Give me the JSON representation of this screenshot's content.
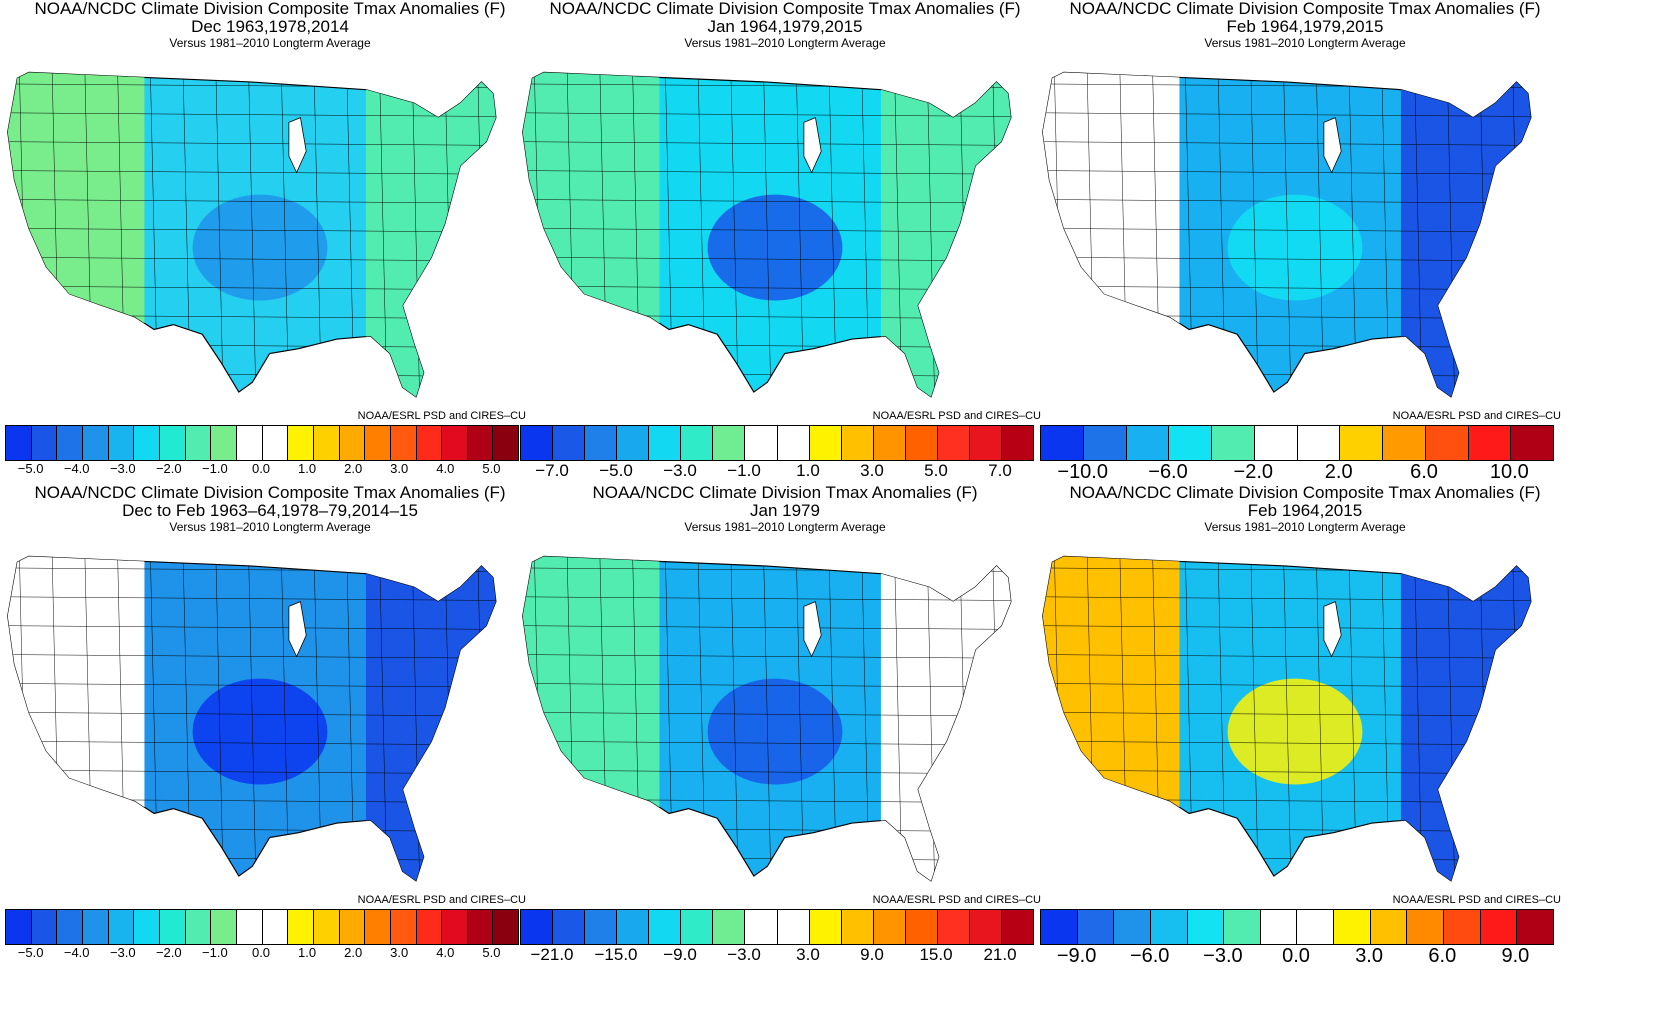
{
  "credit": "NOAA/ESRL PSD and CIRES–CU",
  "panels": [
    {
      "title1": "NOAA/NCDC Climate Division Composite Tmax Anomalies (F)",
      "title2": "Dec   1963,1978,2014",
      "title3": "Versus 1981–2010 Longterm Average",
      "colors": [
        "#0b36f0",
        "#1a55e6",
        "#1e73e8",
        "#1f93ea",
        "#17b4f0",
        "#12d8f2",
        "#22ead2",
        "#52ecb0",
        "#79ed8c",
        "#ffffff",
        "#ffffff",
        "#fff200",
        "#ffd000",
        "#ffaa00",
        "#ff8000",
        "#ff5a10",
        "#ff2a1a",
        "#e20a1e",
        "#b00016",
        "#8a000e"
      ],
      "ticks": [
        "−5.0",
        "−4.0",
        "−3.0",
        "−2.0",
        "−1.0",
        "0.0",
        "1.0",
        "2.0",
        "3.0",
        "4.0",
        "5.0"
      ],
      "tickFont": 13,
      "fill": "#25cfef",
      "west": "#79ed8c",
      "east": "#52ecb0",
      "blob": "#1f93ea"
    },
    {
      "title1": "NOAA/NCDC Climate Division Composite Tmax Anomalies (F)",
      "title2": "Jan   1964,1979,2015",
      "title3": "Versus 1981–2010 Longterm Average",
      "colors": [
        "#0b36f0",
        "#1a58e8",
        "#1f80ea",
        "#18a8ee",
        "#12d8f2",
        "#30ebc8",
        "#70ed92",
        "#ffffff",
        "#ffffff",
        "#fff200",
        "#ffc000",
        "#ff9400",
        "#ff6000",
        "#ff3020",
        "#e8141e",
        "#b80014"
      ],
      "ticks": [
        "−7.0",
        "−5.0",
        "−3.0",
        "−1.0",
        "1.0",
        "3.0",
        "5.0",
        "7.0"
      ],
      "tickFont": 17,
      "fill": "#12d8f2",
      "west": "#52ecb0",
      "east": "#52ecb0",
      "blob": "#1a58e8"
    },
    {
      "title1": "NOAA/NCDC Climate Division Composite Tmax Anomalies (F)",
      "title2": "Feb   1964,1979,2015",
      "title3": "Versus 1981–2010 Longterm Average",
      "colors": [
        "#0b36f0",
        "#1e73e8",
        "#18b0f0",
        "#12e2f2",
        "#52ecb0",
        "#ffffff",
        "#ffffff",
        "#ffd000",
        "#ff9a00",
        "#ff5010",
        "#ff1a1a",
        "#b00016"
      ],
      "ticks": [
        "−10.0",
        "−6.0",
        "−2.0",
        "2.0",
        "6.0",
        "10.0"
      ],
      "tickFont": 20,
      "fill": "#18b0f0",
      "west": "#ffffff",
      "east": "#1a55e6",
      "blob": "#12e2f2"
    },
    {
      "title1": "NOAA/NCDC Climate Division Composite Tmax Anomalies (F)",
      "title2": "Dec to Feb   1963–64,1978–79,2014–15",
      "title3": "Versus 1981–2010 Longterm Average",
      "colors": [
        "#0b36f0",
        "#1a55e6",
        "#1e73e8",
        "#1f93ea",
        "#17b4f0",
        "#12d8f2",
        "#22ead2",
        "#52ecb0",
        "#79ed8c",
        "#ffffff",
        "#ffffff",
        "#fff200",
        "#ffd000",
        "#ffaa00",
        "#ff8000",
        "#ff5a10",
        "#ff2a1a",
        "#e20a1e",
        "#b00016",
        "#8a000e"
      ],
      "ticks": [
        "−5.0",
        "−4.0",
        "−3.0",
        "−2.0",
        "−1.0",
        "0.0",
        "1.0",
        "2.0",
        "3.0",
        "4.0",
        "5.0"
      ],
      "tickFont": 13,
      "fill": "#1f93ea",
      "west": "#ffffff",
      "east": "#1a55e6",
      "blob": "#0b36f0"
    },
    {
      "title1": "NOAA/NCDC Climate Division Tmax Anomalies (F)",
      "title2": "Jan 1979",
      "title3": "Versus 1981–2010 Longterm Average",
      "colors": [
        "#0b36f0",
        "#1a58e8",
        "#1f80ea",
        "#18a8ee",
        "#12d8f2",
        "#30ebc8",
        "#70ed92",
        "#ffffff",
        "#ffffff",
        "#fff200",
        "#ffc000",
        "#ff9400",
        "#ff6000",
        "#ff3020",
        "#e8141e",
        "#b80014"
      ],
      "ticks": [
        "−21.0",
        "−15.0",
        "−9.0",
        "−3.0",
        "3.0",
        "9.0",
        "15.0",
        "21.0"
      ],
      "tickFont": 17,
      "fill": "#18b0f0",
      "west": "#52ecb0",
      "east": "#ffffff",
      "blob": "#1a58e8"
    },
    {
      "title1": "NOAA/NCDC Climate Division Composite Tmax Anomalies (F)",
      "title2": "Feb   1964,2015",
      "title3": "Versus 1981–2010 Longterm Average",
      "colors": [
        "#0b36f0",
        "#1e6ae8",
        "#1f93ea",
        "#17bff0",
        "#12e2f2",
        "#52ecb0",
        "#ffffff",
        "#ffffff",
        "#fff200",
        "#ffc000",
        "#ff8a00",
        "#ff4a10",
        "#ff1a1a",
        "#b00016"
      ],
      "ticks": [
        "−9.0",
        "−6.0",
        "−3.0",
        "0.0",
        "3.0",
        "6.0",
        "9.0"
      ],
      "tickFont": 20,
      "fill": "#17bff0",
      "west": "#ffc000",
      "east": "#1a55e6",
      "blob": "#fff200"
    }
  ]
}
